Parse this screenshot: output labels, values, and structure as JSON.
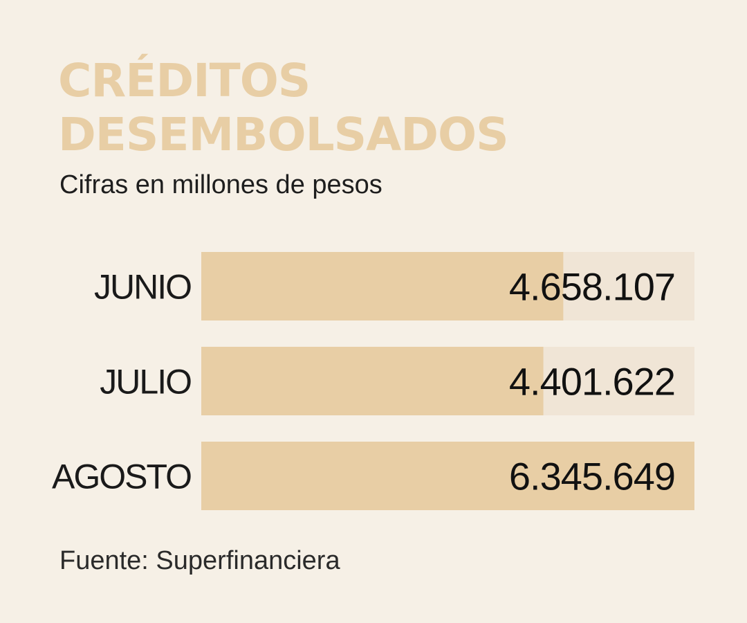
{
  "colors": {
    "background": "#f6f0e6",
    "title": "#e8cea5",
    "bar": "#e8cea5",
    "track": "#f0e5d6",
    "text": "#1a1a1a"
  },
  "source": "Fuente: Superfinanciera",
  "chart_data": {
    "type": "bar",
    "orientation": "horizontal",
    "title": [
      "CRÉDITOS",
      "DESEMBOLSADOS"
    ],
    "subtitle": "Cifras en millones de pesos",
    "categories": [
      "JUNIO",
      "JULIO",
      "AGOSTO"
    ],
    "values": [
      4658107,
      4401622,
      6345649
    ],
    "value_labels": [
      "4.658.107",
      "4.401.622",
      "6.345.649"
    ],
    "xlim": [
      0,
      6345649
    ],
    "grid": false,
    "legend": "none"
  }
}
